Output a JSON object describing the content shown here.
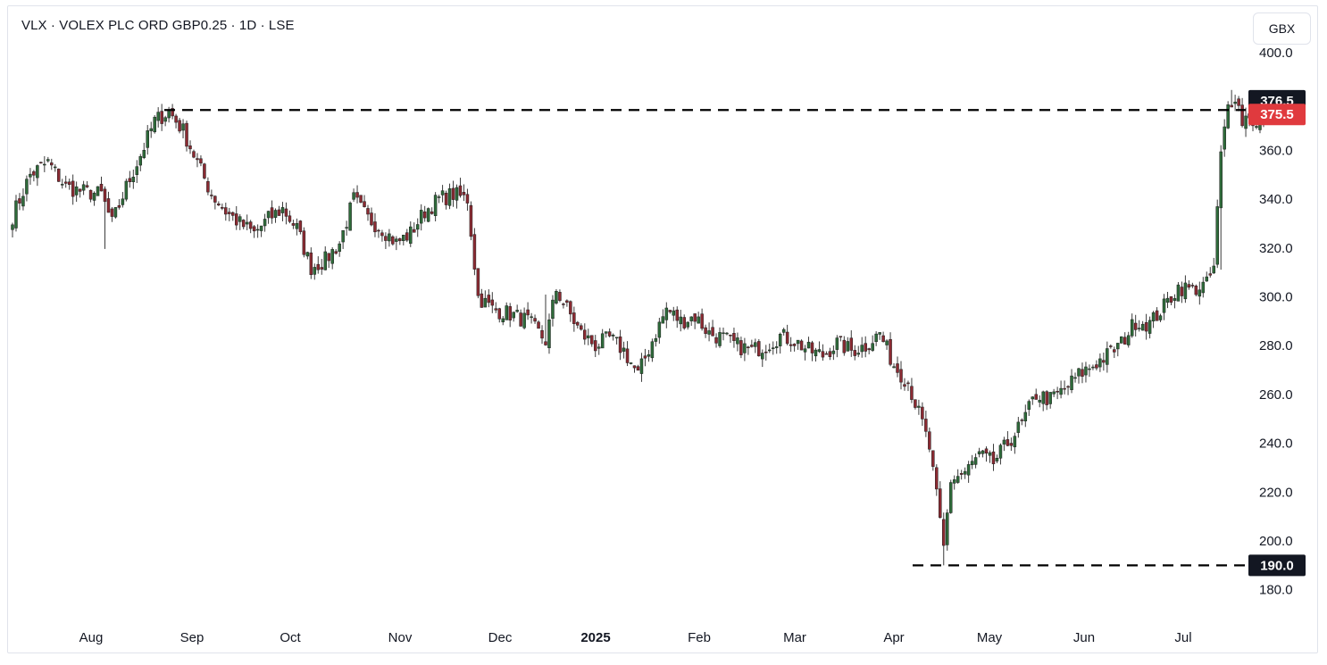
{
  "header": {
    "title": "VLX · VOLEX PLC ORD GBP0.25 · 1D · LSE",
    "currency_button": "GBX"
  },
  "colors": {
    "up": "#2e6b3a",
    "down": "#8b2a32",
    "wick": "#3a3a3a",
    "last_price_badge": "#e03a3e",
    "line_badge": "#131722"
  },
  "chart_data": {
    "type": "candlestick",
    "title": "VLX · VOLEX PLC ORD GBP0.25 · 1D · LSE",
    "ylim": [
      175,
      405
    ],
    "y_ticks": [
      "400.0",
      "360.0",
      "340.0",
      "320.0",
      "300.0",
      "280.0",
      "260.0",
      "240.0",
      "220.0",
      "200.0",
      "180.0"
    ],
    "x_ticks": [
      "Aug",
      "Sep",
      "Oct",
      "Nov",
      "Dec",
      "2025",
      "Feb",
      "Mar",
      "Apr",
      "May",
      "Jun",
      "Jul"
    ],
    "grid": false,
    "horizontal_lines": [
      {
        "value": 376.5,
        "label": "376.5",
        "style": "dashed"
      },
      {
        "value": 190.0,
        "label": "190.0",
        "style": "dashed"
      }
    ],
    "last_price": {
      "value": 375.5,
      "label": "375.5"
    },
    "anchors": [
      [
        0,
        333
      ],
      [
        5,
        350
      ],
      [
        10,
        355
      ],
      [
        15,
        345
      ],
      [
        20,
        343
      ],
      [
        25,
        342
      ],
      [
        28,
        330
      ],
      [
        32,
        345
      ],
      [
        36,
        358
      ],
      [
        40,
        372
      ],
      [
        44,
        376
      ],
      [
        48,
        368
      ],
      [
        52,
        355
      ],
      [
        56,
        342
      ],
      [
        60,
        335
      ],
      [
        64,
        330
      ],
      [
        68,
        326
      ],
      [
        72,
        332
      ],
      [
        76,
        336
      ],
      [
        80,
        328
      ],
      [
        84,
        312
      ],
      [
        88,
        315
      ],
      [
        92,
        322
      ],
      [
        96,
        340
      ],
      [
        100,
        332
      ],
      [
        104,
        328
      ],
      [
        108,
        322
      ],
      [
        112,
        326
      ],
      [
        116,
        335
      ],
      [
        120,
        340
      ],
      [
        124,
        342
      ],
      [
        128,
        340
      ],
      [
        131,
        300
      ],
      [
        135,
        295
      ],
      [
        140,
        293
      ],
      [
        145,
        290
      ],
      [
        150,
        282
      ],
      [
        153,
        303
      ],
      [
        156,
        295
      ],
      [
        160,
        285
      ],
      [
        164,
        280
      ],
      [
        168,
        283
      ],
      [
        172,
        278
      ],
      [
        176,
        268
      ],
      [
        180,
        282
      ],
      [
        184,
        295
      ],
      [
        188,
        290
      ],
      [
        192,
        292
      ],
      [
        196,
        285
      ],
      [
        200,
        283
      ],
      [
        204,
        280
      ],
      [
        208,
        278
      ],
      [
        212,
        280
      ],
      [
        216,
        284
      ],
      [
        220,
        282
      ],
      [
        224,
        278
      ],
      [
        228,
        276
      ],
      [
        232,
        281
      ],
      [
        236,
        278
      ],
      [
        240,
        280
      ],
      [
        244,
        285
      ],
      [
        248,
        272
      ],
      [
        252,
        265
      ],
      [
        256,
        248
      ],
      [
        258,
        238
      ],
      [
        260,
        218
      ],
      [
        262,
        197
      ],
      [
        264,
        225
      ],
      [
        268,
        228
      ],
      [
        272,
        235
      ],
      [
        276,
        232
      ],
      [
        280,
        240
      ],
      [
        284,
        248
      ],
      [
        288,
        260
      ],
      [
        292,
        258
      ],
      [
        296,
        262
      ],
      [
        300,
        268
      ],
      [
        304,
        272
      ],
      [
        308,
        276
      ],
      [
        312,
        281
      ],
      [
        316,
        290
      ],
      [
        320,
        289
      ],
      [
        324,
        296
      ],
      [
        328,
        304
      ],
      [
        332,
        303
      ],
      [
        336,
        305
      ],
      [
        338,
        312
      ],
      [
        340,
        358
      ],
      [
        342,
        378
      ],
      [
        344,
        383
      ],
      [
        346,
        372
      ],
      [
        348,
        375
      ],
      [
        350,
        369
      ],
      [
        352,
        372
      ],
      [
        353,
        375.5
      ]
    ]
  }
}
